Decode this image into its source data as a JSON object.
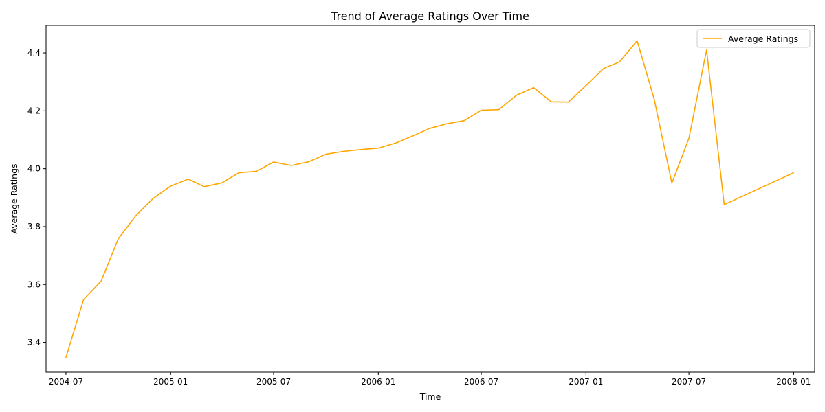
{
  "chart_data": {
    "type": "line",
    "title": "Trend of Average Ratings Over Time",
    "xlabel": "Time",
    "ylabel": "Average Ratings",
    "x_ticks": [
      "2004-07",
      "2005-01",
      "2005-07",
      "2006-01",
      "2006-07",
      "2007-01",
      "2007-07",
      "2008-01"
    ],
    "y_ticks": [
      3.4,
      3.6,
      3.8,
      4.0,
      4.2,
      4.4
    ],
    "y_tick_labels": [
      "3.4",
      "3.6",
      "3.8",
      "4.0",
      "4.2",
      "4.4"
    ],
    "xlim": [
      "2004-05-27",
      "2008-02-07"
    ],
    "ylim": [
      3.297,
      4.495
    ],
    "grid": false,
    "legend_position": "top-right",
    "series": [
      {
        "name": "Average Ratings",
        "color": "#FFA500",
        "x": [
          "2004-07-01",
          "2004-08-01",
          "2004-09-01",
          "2004-10-01",
          "2004-11-01",
          "2004-12-01",
          "2005-01-01",
          "2005-02-01",
          "2005-03-01",
          "2005-04-01",
          "2005-05-01",
          "2005-06-01",
          "2005-07-01",
          "2005-08-01",
          "2005-09-01",
          "2005-10-01",
          "2005-11-01",
          "2005-12-01",
          "2006-01-01",
          "2006-02-01",
          "2006-03-01",
          "2006-04-01",
          "2006-05-01",
          "2006-06-01",
          "2006-07-01",
          "2006-08-01",
          "2006-09-01",
          "2006-10-01",
          "2006-11-01",
          "2006-12-01",
          "2007-01-01",
          "2007-02-01",
          "2007-03-01",
          "2007-04-01",
          "2007-05-01",
          "2007-06-01",
          "2007-07-01",
          "2007-08-01",
          "2007-09-01",
          "2008-01-01"
        ],
        "values": [
          3.348,
          3.548,
          3.612,
          3.758,
          3.838,
          3.897,
          3.94,
          3.964,
          3.938,
          3.951,
          3.986,
          3.991,
          4.023,
          4.011,
          4.024,
          4.05,
          4.06,
          4.066,
          4.071,
          4.089,
          4.112,
          4.139,
          4.155,
          4.166,
          4.202,
          4.204,
          4.254,
          4.28,
          4.231,
          4.23,
          4.287,
          4.346,
          4.369,
          4.442,
          4.24,
          3.95,
          4.105,
          4.41,
          3.876,
          3.986
        ]
      }
    ]
  }
}
